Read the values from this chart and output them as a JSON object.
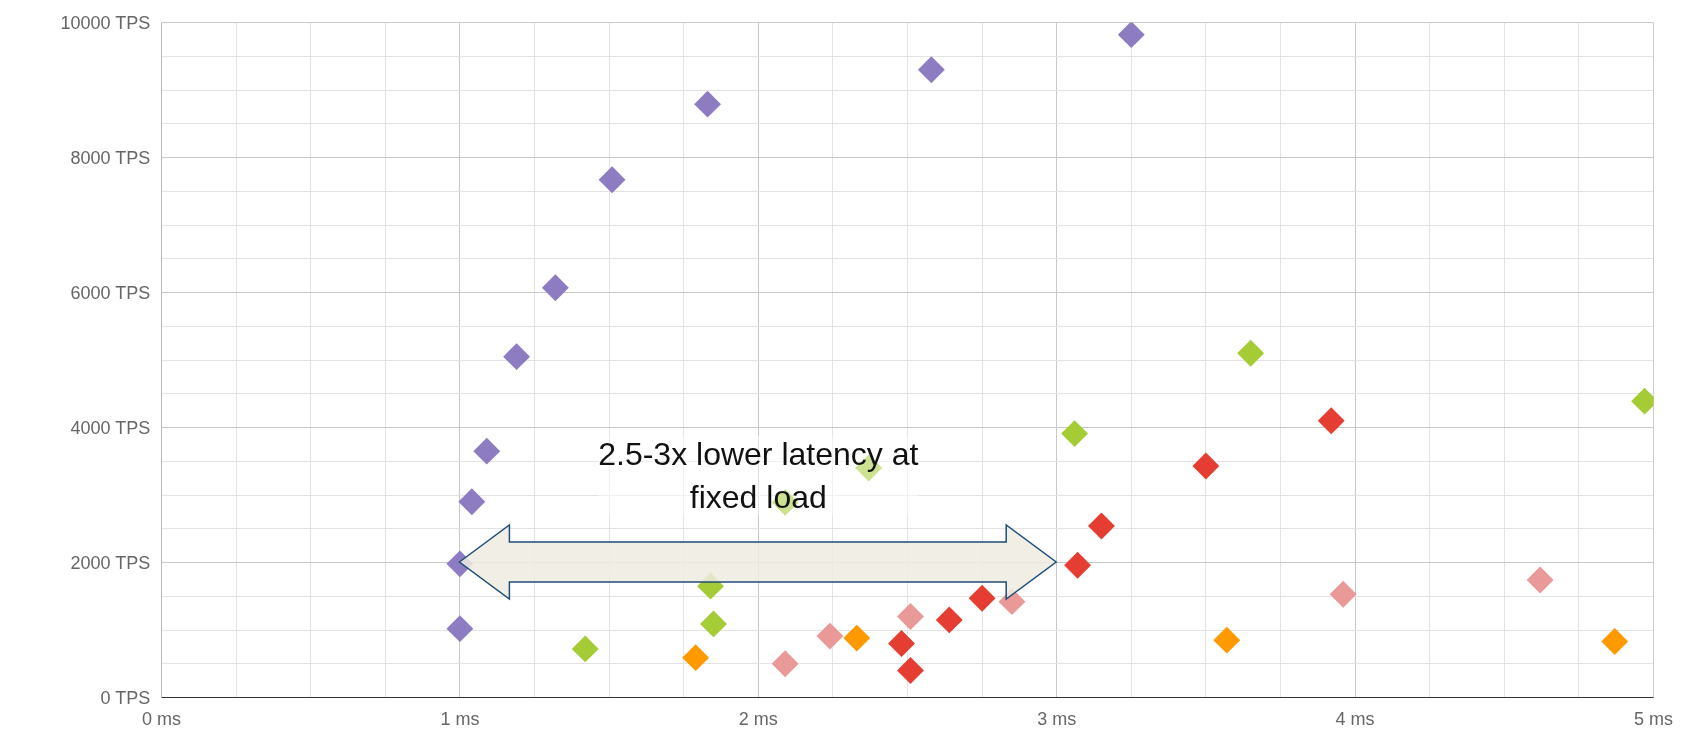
{
  "chart_data": {
    "type": "scatter",
    "marker": "diamond",
    "grid": true,
    "xlim": [
      0,
      5
    ],
    "ylim": [
      0,
      10000
    ],
    "xticks": [
      {
        "value": 0,
        "label": "0 ms"
      },
      {
        "value": 1,
        "label": "1 ms"
      },
      {
        "value": 2,
        "label": "2 ms"
      },
      {
        "value": 3,
        "label": "3 ms"
      },
      {
        "value": 4,
        "label": "4 ms"
      },
      {
        "value": 5,
        "label": "5 ms"
      }
    ],
    "yticks": [
      {
        "value": 0,
        "label": "0 TPS"
      },
      {
        "value": 2000,
        "label": "2000 TPS"
      },
      {
        "value": 4000,
        "label": "4000 TPS"
      },
      {
        "value": 6000,
        "label": "6000 TPS"
      },
      {
        "value": 8000,
        "label": "8000 TPS"
      },
      {
        "value": 10000,
        "label": "10000 TPS"
      }
    ],
    "annotations": [
      "2.5-3x lower latency at fixed load"
    ],
    "series": [
      {
        "color": "#8e7cc3",
        "x": [
          1.0,
          1.0,
          1.04,
          1.09,
          1.19,
          1.32,
          1.51,
          1.83,
          2.58,
          3.25
        ],
        "values": [
          1020,
          1980,
          2900,
          3650,
          5050,
          6070,
          7670,
          8790,
          9300,
          9820
        ]
      },
      {
        "color": "#a5cb35",
        "x": [
          1.42,
          1.85,
          1.84,
          2.09,
          2.37,
          3.06,
          3.65,
          4.97
        ],
        "values": [
          720,
          1090,
          1650,
          2890,
          3400,
          3910,
          5100,
          4390
        ]
      },
      {
        "color": "#e53d32",
        "x": [
          2.48,
          2.51,
          2.64,
          2.75,
          3.07,
          3.15,
          3.5,
          3.92
        ],
        "values": [
          800,
          400,
          1150,
          1470,
          1960,
          2540,
          3430,
          4100
        ]
      },
      {
        "color": "#ea9999",
        "x": [
          2.09,
          2.24,
          2.51,
          2.85,
          3.96,
          4.62
        ],
        "values": [
          500,
          910,
          1200,
          1420,
          1530,
          1740
        ]
      },
      {
        "color": "#ff9900",
        "x": [
          1.79,
          2.33,
          3.57,
          4.87
        ],
        "values": [
          590,
          880,
          850,
          830
        ]
      }
    ]
  }
}
